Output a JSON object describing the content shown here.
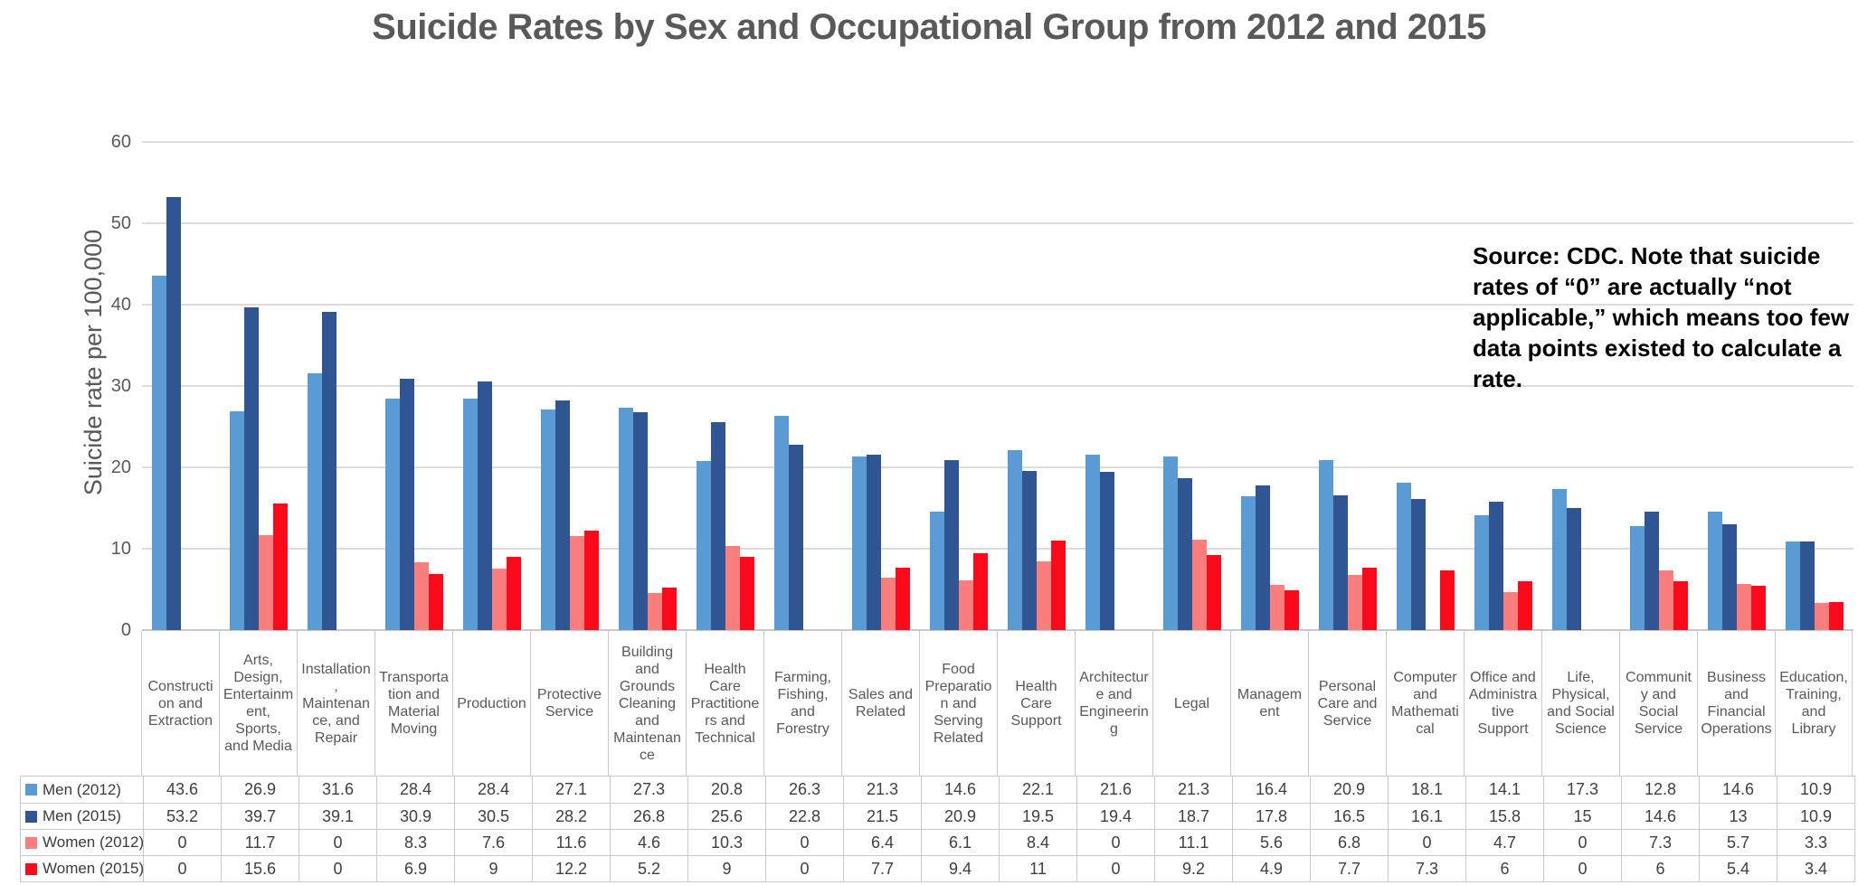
{
  "title": "Suicide Rates by Sex and Occupational Group from 2012 and 2015",
  "annotation": "Source: CDC. Note that suicide rates of “0” are actually “not applicable,” which means too few data points existed to calculate a rate.",
  "chart_data": {
    "type": "bar",
    "title": "Suicide Rates by Sex and Occupational Group from 2012 and 2015",
    "xlabel": "",
    "ylabel": "Suicide rate per 100,000",
    "ylim": [
      0,
      60
    ],
    "yticks": [
      0,
      10,
      20,
      30,
      40,
      50,
      60
    ],
    "grid": true,
    "legend_position": "table-left",
    "gridline_color": "#DCDCDC",
    "categories": [
      "Construction and Extraction",
      "Arts, Design, Entertainment, Sports, and Media",
      "Installation, Maintenance, and Repair",
      "Transportation and Material Moving",
      "Production",
      "Protective Service",
      "Building and Grounds Cleaning and Maintenance",
      "Health Care Practitioners and Technical",
      "Farming, Fishing, and Forestry",
      "Sales and Related",
      "Food Preparation and Serving Related",
      "Health Care Support",
      "Architecture and Engineering",
      "Legal",
      "Management",
      "Personal Care and Service",
      "Computer and Mathematical",
      "Office and Administrative Support",
      "Life, Physical, and Social Science",
      "Community and Social Service",
      "Business and Financial Operations",
      "Education, Training, and Library"
    ],
    "series": [
      {
        "name": "Men (2012)",
        "color": "#5B9BD5",
        "values": [
          43.6,
          26.9,
          31.6,
          28.4,
          28.4,
          27.1,
          27.3,
          20.8,
          26.3,
          21.3,
          14.6,
          22.1,
          21.6,
          21.3,
          16.4,
          20.9,
          18.1,
          14.1,
          17.3,
          12.8,
          14.6,
          10.9
        ]
      },
      {
        "name": "Men (2015)",
        "color": "#2F5592",
        "values": [
          53.2,
          39.7,
          39.1,
          30.9,
          30.5,
          28.2,
          26.8,
          25.6,
          22.8,
          21.5,
          20.9,
          19.5,
          19.4,
          18.7,
          17.8,
          16.5,
          16.1,
          15.8,
          15,
          14.6,
          13,
          10.9
        ]
      },
      {
        "name": "Women (2012)",
        "color": "#FA7E7E",
        "values": [
          0,
          11.7,
          0,
          8.3,
          7.6,
          11.6,
          4.6,
          10.3,
          0,
          6.4,
          6.1,
          8.4,
          0,
          11.1,
          5.6,
          6.8,
          0,
          4.7,
          0,
          7.3,
          5.7,
          3.3
        ]
      },
      {
        "name": "Women (2015)",
        "color": "#FA0A1A",
        "values": [
          0,
          15.6,
          0,
          6.9,
          9,
          12.2,
          5.2,
          9,
          0,
          7.7,
          9.4,
          11,
          0,
          9.2,
          4.9,
          7.7,
          7.3,
          6,
          0,
          6,
          5.4,
          3.4
        ]
      }
    ]
  }
}
